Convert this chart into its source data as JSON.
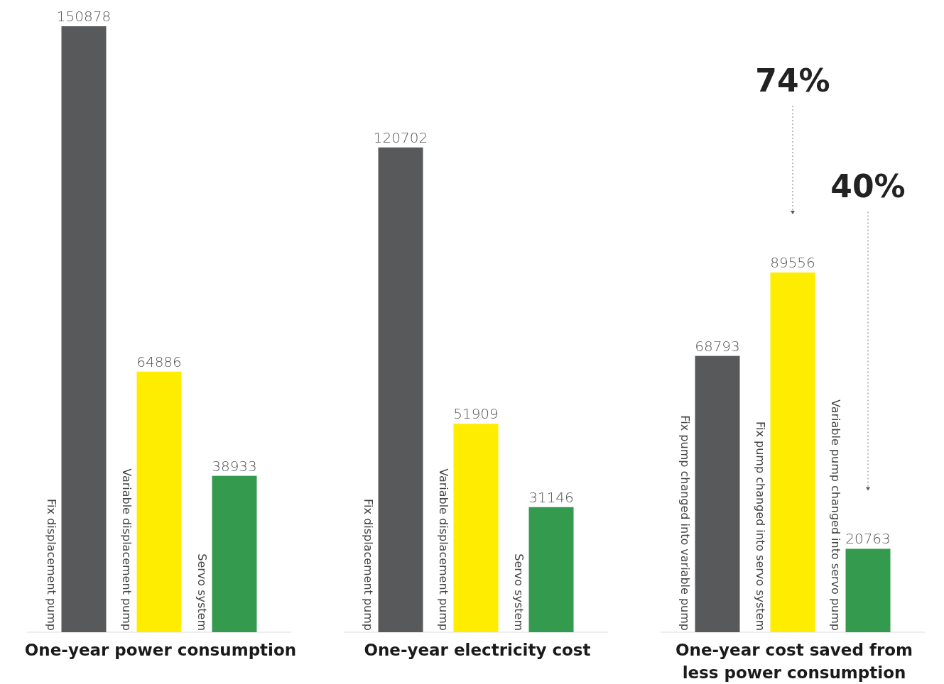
{
  "chart_data": [
    {
      "type": "bar",
      "title": "One-year power consumption",
      "categories": [
        "Fix displacement pump",
        "Variable displacement pump",
        "Servo system"
      ],
      "values": [
        150878,
        64886,
        38933
      ],
      "colors": [
        "#58595b",
        "#ffed00",
        "#339a4e"
      ],
      "tick_labels": "x",
      "data_labels": true
    },
    {
      "type": "bar",
      "title": "One-year electricity cost",
      "categories": [
        "Fix displacement pump",
        "Variable displacement pump",
        "Servo system"
      ],
      "values": [
        120702,
        51909,
        31146
      ],
      "colors": [
        "#58595b",
        "#ffed00",
        "#339a4e"
      ],
      "tick_labels": "x",
      "data_labels": true
    },
    {
      "type": "bar",
      "title": "One-year cost saved from less power consumption",
      "categories": [
        "Fix pump changed into variable pump",
        "Fix pump changed into servo system",
        "Variable pump changed into servo pump"
      ],
      "values": [
        68793,
        89556,
        20763
      ],
      "colors": [
        "#58595b",
        "#ffed00",
        "#339a4e"
      ],
      "tick_labels": "x",
      "data_labels": true,
      "annotations": [
        "74%",
        "40%"
      ]
    }
  ]
}
